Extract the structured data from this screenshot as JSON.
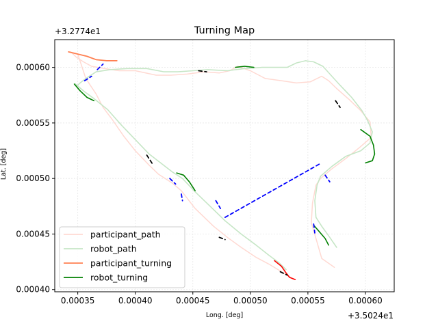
{
  "chart_data": {
    "type": "line",
    "title": "Turning Map",
    "xlabel": "Long. [deg]",
    "ylabel": "Lat. [deg]",
    "x_offset_label": "+3.5024e1",
    "y_offset_label": "+3.2774e1",
    "xlim": [
      0.00033,
      0.000625
    ],
    "ylim": [
      0.000398,
      0.000625
    ],
    "xticks": [
      0.00035,
      0.0004,
      0.00045,
      0.0005,
      0.00055,
      0.0006
    ],
    "xtick_labels": [
      "0.00035",
      "0.00040",
      "0.00045",
      "0.00050",
      "0.00055",
      "0.00060"
    ],
    "yticks": [
      0.0004,
      0.00045,
      0.0005,
      0.00055,
      0.0006
    ],
    "ytick_labels": [
      "0.00040",
      "0.00045",
      "0.00050",
      "0.00055",
      "0.00060"
    ],
    "grid": true,
    "legend_position": "lower-left",
    "colors": {
      "participant_path": "#ffd9d2",
      "robot_path": "#c6e6c6",
      "participant_turning": "#ff7f50",
      "robot_turning": "#008000",
      "red_segment": "#ff0000",
      "blue_dashes": "#0000ff",
      "black_dashes": "#000000"
    },
    "series": [
      {
        "name": "participant_path",
        "x": [
          0.000342,
          0.00035,
          0.000357,
          0.000366,
          0.000372,
          0.00038,
          0.00039,
          0.0004,
          0.000412,
          0.00042,
          0.000432,
          0.00044,
          0.000452,
          0.000468,
          0.00048,
          0.000492,
          0.000505,
          0.000516,
          0.000524,
          0.000532,
          0.000538
        ],
        "y": [
          0.000614,
          0.000612,
          0.00059,
          0.000576,
          0.000564,
          0.000553,
          0.000538,
          0.000525,
          0.000512,
          0.000504,
          0.000496,
          0.000489,
          0.000473,
          0.000457,
          0.000447,
          0.000438,
          0.000429,
          0.000423,
          0.000418,
          0.000413,
          0.000409
        ]
      },
      {
        "name": "participant_path (east loop)",
        "x": [
          0.000573,
          0.000562,
          0.000557,
          0.000553,
          0.000554,
          0.000557,
          0.000561,
          0.00057,
          0.000583,
          0.000595,
          0.000605,
          0.000604,
          0.000596,
          0.000586,
          0.000575,
          0.000568,
          0.000562,
          0.000552,
          0.00054,
          0.000527,
          0.000513,
          0.0005,
          0.000489,
          0.000482,
          0.000473,
          0.00046,
          0.000445,
          0.000431,
          0.000418,
          0.0004,
          0.000386,
          0.000373,
          0.000362,
          0.000355,
          0.000349,
          0.000344
        ],
        "y": [
          0.00042,
          0.000428,
          0.000446,
          0.00046,
          0.000478,
          0.000494,
          0.0005,
          0.000508,
          0.000518,
          0.000528,
          0.000537,
          0.000551,
          0.000561,
          0.000571,
          0.000581,
          0.000588,
          0.000592,
          0.000587,
          0.000586,
          0.000588,
          0.00059,
          0.000597,
          0.000601,
          0.000597,
          0.000595,
          0.000596,
          0.000594,
          0.000593,
          0.000593,
          0.000597,
          0.000597,
          0.000599,
          0.000601,
          0.000605,
          0.000609,
          0.000614
        ]
      },
      {
        "name": "robot_path",
        "x": [
          0.000575,
          0.000569,
          0.000562,
          0.000557,
          0.000556,
          0.000558,
          0.000561,
          0.000571,
          0.000583,
          0.000596,
          0.000604,
          0.000606,
          0.000602,
          0.000597,
          0.000588,
          0.000577,
          0.00057,
          0.000563,
          0.000555,
          0.000548,
          0.00054,
          0.000532,
          0.00052,
          0.00051,
          0.000495,
          0.00048,
          0.000463,
          0.00045,
          0.000437,
          0.000425,
          0.00041,
          0.000393,
          0.000378,
          0.000366,
          0.000357,
          0.000352,
          0.000349,
          0.000348
        ],
        "y": [
          0.000438,
          0.000447,
          0.000457,
          0.000465,
          0.00048,
          0.000494,
          0.000502,
          0.000511,
          0.00052,
          0.000525,
          0.000532,
          0.000542,
          0.000552,
          0.000561,
          0.000573,
          0.000585,
          0.000593,
          0.000601,
          0.000605,
          0.000606,
          0.000604,
          0.0006,
          0.0006,
          0.0006,
          0.000599,
          0.000597,
          0.000598,
          0.000597,
          0.000596,
          0.000596,
          0.000599,
          0.000599,
          0.000598,
          0.000596,
          0.00059,
          0.000586,
          0.000583,
          0.000585
        ]
      },
      {
        "name": "robot_path (west leg)",
        "x": [
          0.000348,
          0.000356,
          0.000364,
          0.000376,
          0.000388,
          0.0004,
          0.000412,
          0.000422,
          0.000432,
          0.000441,
          0.000452,
          0.000465,
          0.000478,
          0.000492,
          0.000505,
          0.000516,
          0.000525,
          0.000531
        ],
        "y": [
          0.000585,
          0.000578,
          0.000572,
          0.000562,
          0.000548,
          0.000535,
          0.000522,
          0.000514,
          0.000506,
          0.0005,
          0.000488,
          0.000475,
          0.000462,
          0.00045,
          0.00044,
          0.000431,
          0.000424,
          0.000418
        ]
      },
      {
        "name": "participant_turning",
        "x": [
          0.000342,
          0.00035,
          0.000358,
          0.000366,
          0.000375,
          0.000384
        ],
        "y": [
          0.000614,
          0.000612,
          0.00061,
          0.000607,
          0.000606,
          0.000606
        ]
      },
      {
        "name": "robot_turning (east)",
        "x": [
          0.000596,
          0.000604,
          0.000607,
          0.000608,
          0.000606,
          0.0006
        ],
        "y": [
          0.000544,
          0.000538,
          0.00053,
          0.000522,
          0.000516,
          0.000514
        ]
      },
      {
        "name": "robot_turning (west)",
        "x": [
          0.000347,
          0.000352,
          0.000358,
          0.000364
        ],
        "y": [
          0.000585,
          0.000579,
          0.000573,
          0.00057
        ]
      },
      {
        "name": "robot_turning (south-east)",
        "x": [
          0.000555,
          0.00056,
          0.000565,
          0.000568
        ],
        "y": [
          0.000458,
          0.000452,
          0.000446,
          0.00044
        ]
      },
      {
        "name": "robot_turning (mid)",
        "x": [
          0.000436,
          0.000442,
          0.000447,
          0.000452
        ],
        "y": [
          0.000505,
          0.000503,
          0.000497,
          0.000489
        ]
      },
      {
        "name": "robot_turning (north)",
        "x": [
          0.000487,
          0.000495,
          0.000503
        ],
        "y": [
          0.0006,
          0.000601,
          0.0006
        ]
      },
      {
        "name": "red turning segment",
        "x": [
          0.000521,
          0.000527,
          0.000531,
          0.000534,
          0.000539
        ],
        "y": [
          0.000426,
          0.000421,
          0.000415,
          0.000411,
          0.000409
        ]
      },
      {
        "name": "blue dashed segments",
        "x": [
          0.000356,
          0.000362,
          0.000367,
          0.000372,
          0.00043,
          0.000435,
          0.00044,
          0.000441,
          0.00047,
          0.000474,
          0.000478,
          0.00056,
          0.000565,
          0.000569,
          0.000555,
          0.000556,
          0.000558
        ],
        "y": [
          0.000588,
          0.000592,
          0.000598,
          0.000603,
          0.0005,
          0.000495,
          0.000486,
          0.00048,
          0.00048,
          0.000473,
          0.000465,
          0.000513,
          0.000503,
          0.000497,
          0.000459,
          0.000451,
          0.000444
        ]
      },
      {
        "name": "black dashed segments",
        "x": [
          0.00041,
          0.000415,
          0.000473,
          0.000478,
          0.000526,
          0.000532,
          0.000574,
          0.000578,
          0.000455,
          0.000462
        ],
        "y": [
          0.000521,
          0.000513,
          0.000447,
          0.000445,
          0.000416,
          0.000413,
          0.00057,
          0.000564,
          0.000597,
          0.000596
        ]
      }
    ],
    "legend": [
      "participant_path",
      "robot_path",
      "participant_turning",
      "robot_turning"
    ]
  }
}
